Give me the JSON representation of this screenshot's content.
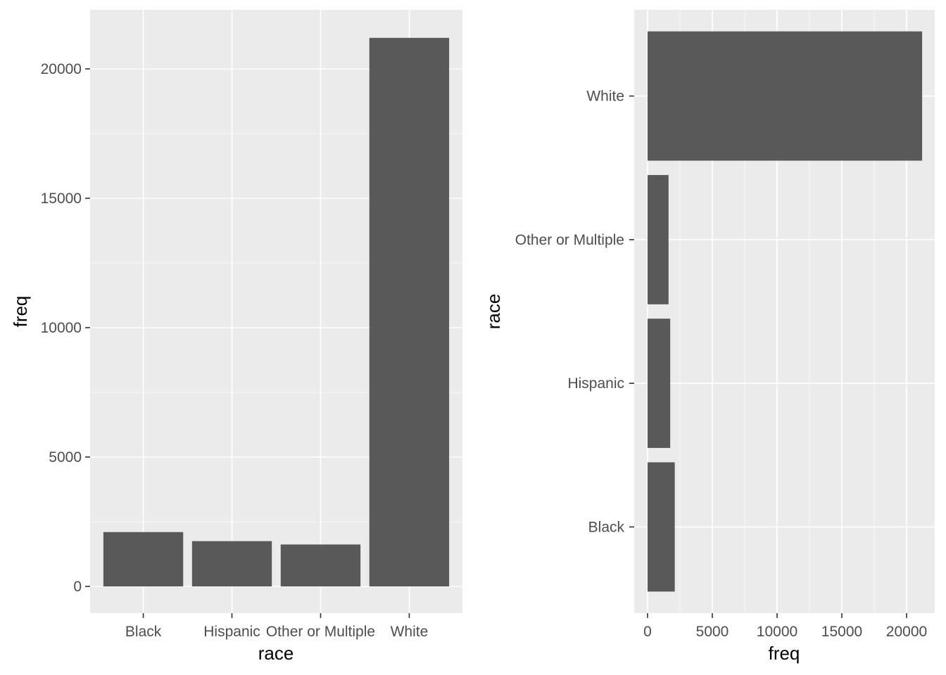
{
  "chart_data": [
    {
      "type": "bar",
      "orientation": "vertical",
      "categories": [
        "Black",
        "Hispanic",
        "Other or Multiple",
        "White"
      ],
      "values": [
        2100,
        1750,
        1620,
        21200
      ],
      "xlabel": "race",
      "ylabel": "freq",
      "ylim": [
        0,
        22000
      ],
      "yticks": [
        "0",
        "5000",
        "10000",
        "15000",
        "20000"
      ],
      "grid": true,
      "bar_color": "#595959",
      "panel_color": "#ebebeb"
    },
    {
      "type": "bar",
      "orientation": "horizontal",
      "categories": [
        "Black",
        "Hispanic",
        "Other or Multiple",
        "White"
      ],
      "values": [
        2100,
        1750,
        1620,
        21200
      ],
      "xlabel": "freq",
      "ylabel": "race",
      "xlim": [
        0,
        22000
      ],
      "xticks": [
        "0",
        "5000",
        "10000",
        "15000",
        "20000"
      ],
      "grid": true,
      "bar_color": "#595959",
      "panel_color": "#ebebeb"
    }
  ]
}
